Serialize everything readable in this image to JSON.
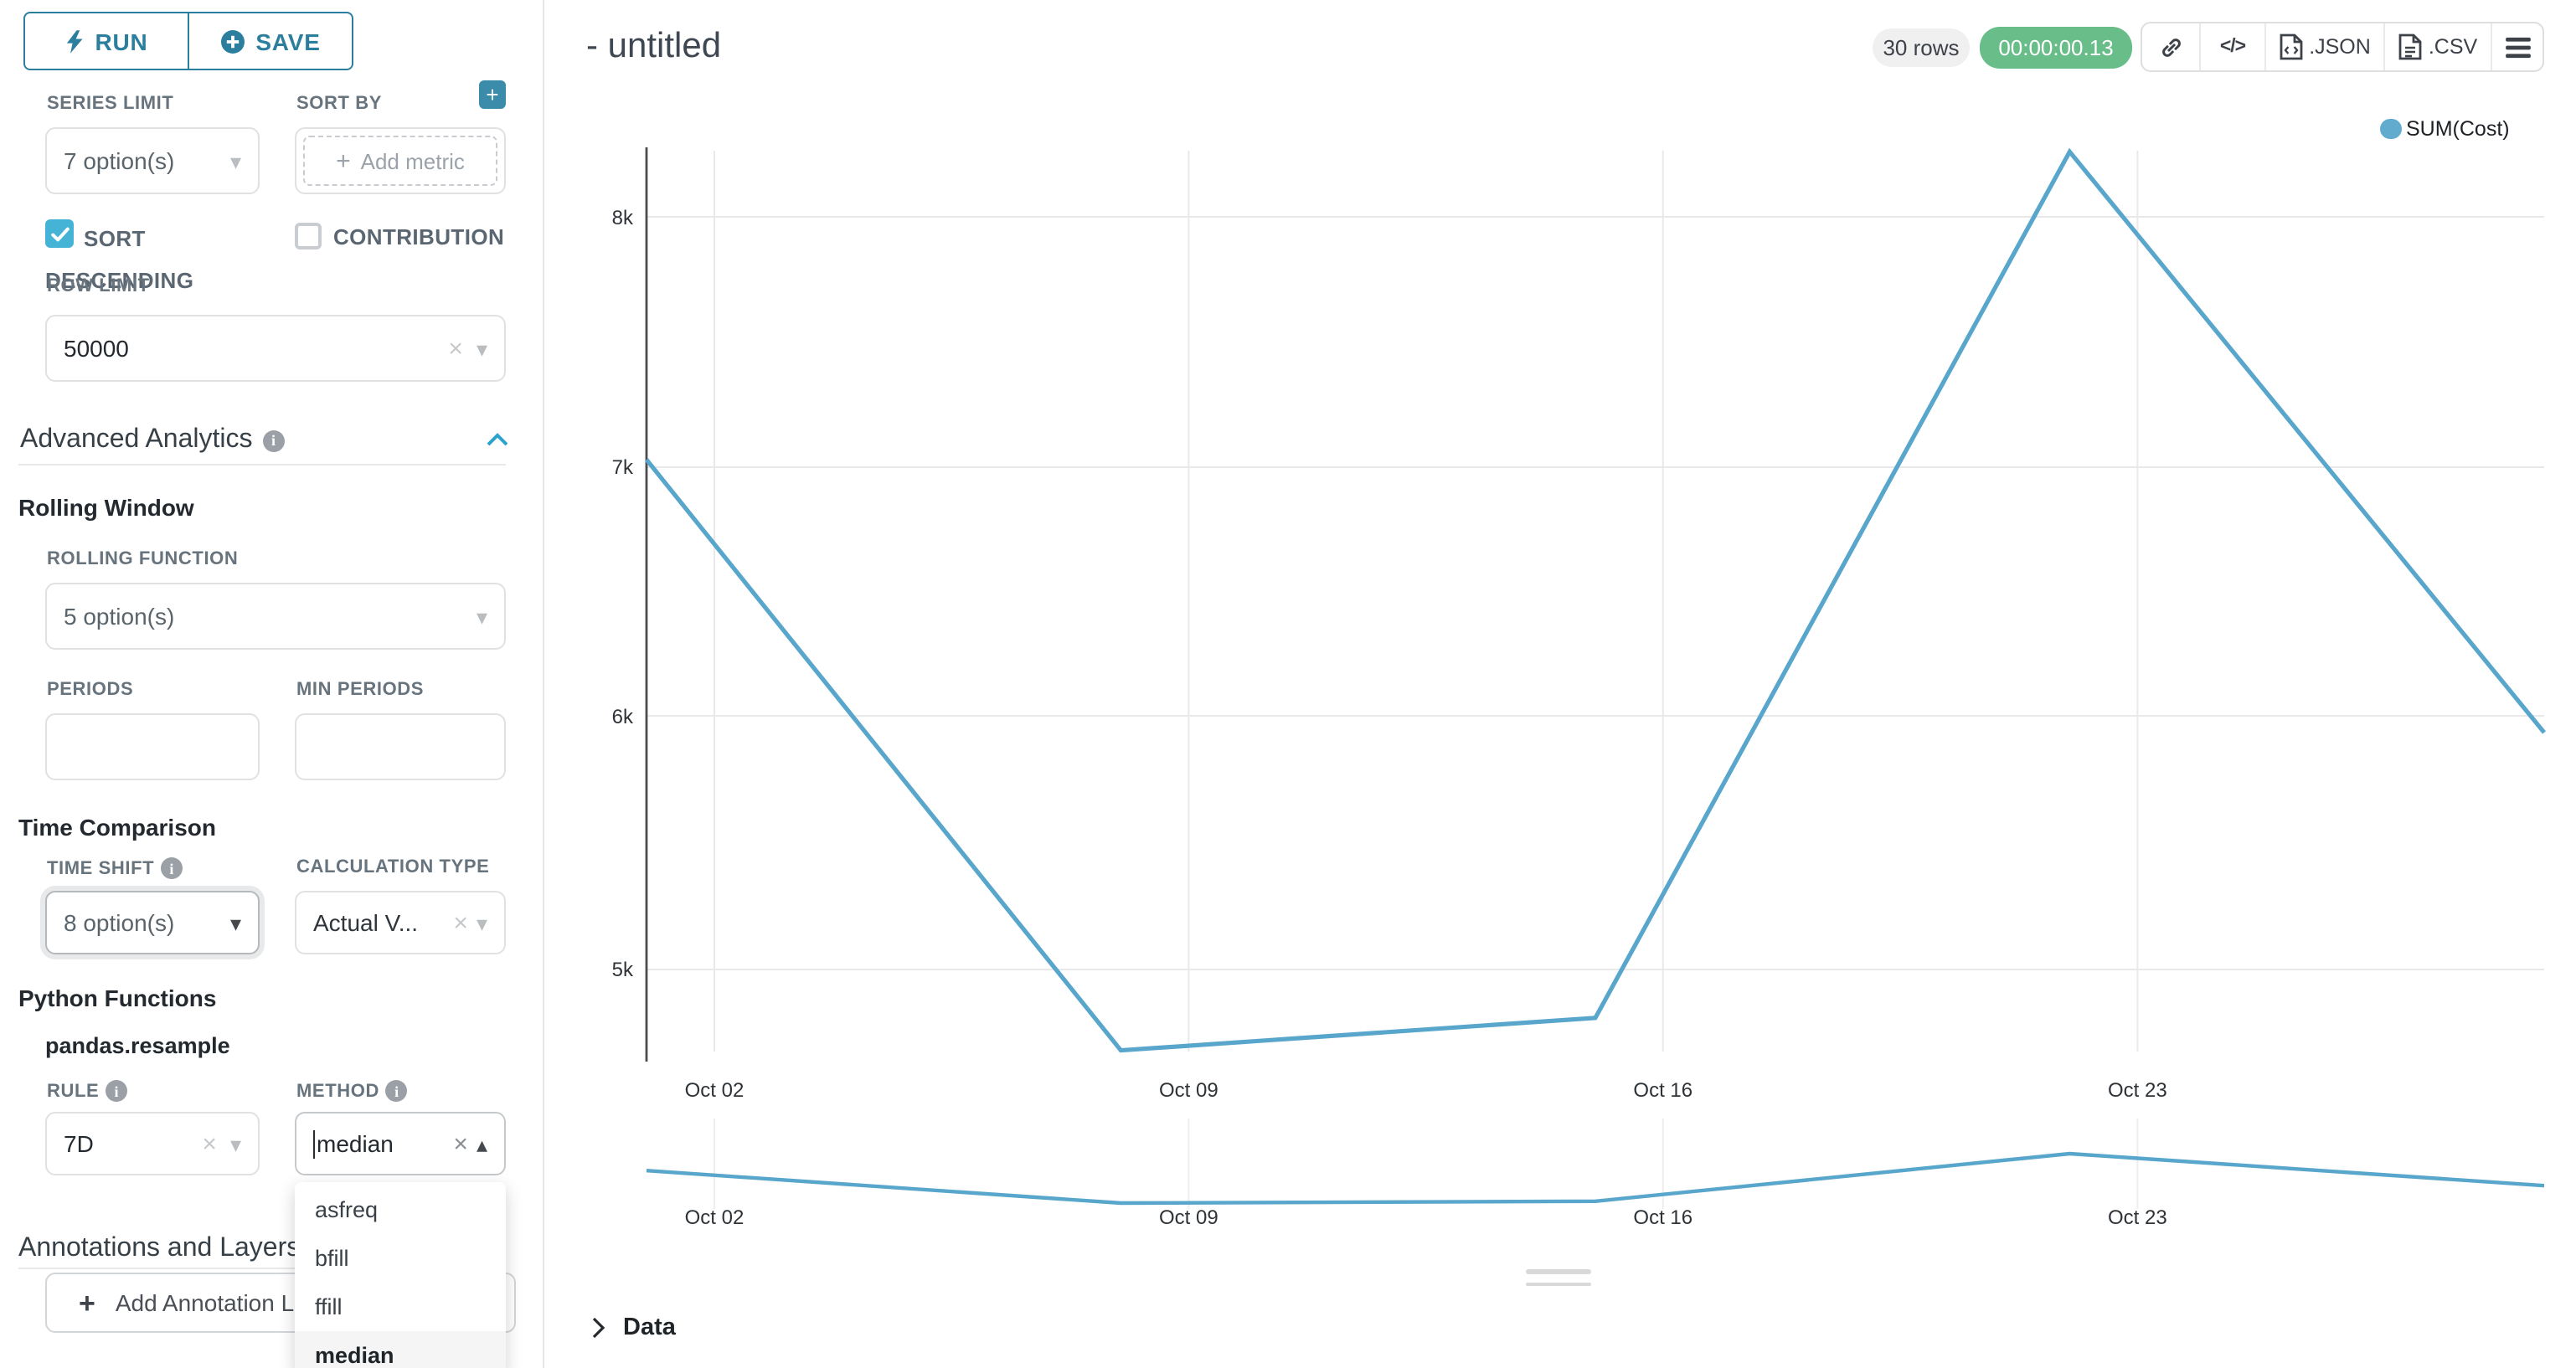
{
  "sidebar": {
    "run_button": {
      "label": "RUN"
    },
    "save_button": {
      "label": "SAVE"
    },
    "series_limit": {
      "label": "SERIES LIMIT",
      "value": "7 option(s)"
    },
    "sort_by": {
      "label": "SORT BY",
      "placeholder": "Add metric"
    },
    "sort_descending": {
      "label": "SORT DESCENDING",
      "checked": true
    },
    "contribution": {
      "label": "CONTRIBUTION",
      "checked": false
    },
    "row_limit": {
      "label": "ROW LIMIT",
      "value": "50000"
    },
    "advanced_analytics": {
      "title": "Advanced Analytics"
    },
    "rolling_window": {
      "title": "Rolling Window",
      "rolling_function": {
        "label": "ROLLING FUNCTION",
        "value": "5 option(s)"
      },
      "periods": {
        "label": "PERIODS",
        "value": ""
      },
      "min_periods": {
        "label": "MIN PERIODS",
        "value": ""
      }
    },
    "time_comparison": {
      "title": "Time Comparison",
      "time_shift": {
        "label": "TIME SHIFT",
        "value": "8 option(s)"
      },
      "calculation_type": {
        "label": "CALCULATION TYPE",
        "value": "Actual V..."
      }
    },
    "python_functions": {
      "title": "Python Functions",
      "subtitle": "pandas.resample",
      "rule": {
        "label": "RULE",
        "value": "7D"
      },
      "method": {
        "label": "METHOD",
        "value": "median",
        "options": [
          "asfreq",
          "bfill",
          "ffill",
          "median"
        ],
        "selected_option": "median"
      }
    },
    "annotations": {
      "title": "Annotations and Layers",
      "add_button_label": "Add Annotation Layer"
    }
  },
  "header": {
    "title": "- untitled",
    "rows_badge": "30 rows",
    "timer_badge": "00:00:00.13",
    "export_json_label": ".JSON",
    "export_csv_label": ".CSV"
  },
  "expander": {
    "data_label": "Data"
  },
  "colors": {
    "primary_teal": "#2b7e9d",
    "checkbox_teal": "#45b3d6",
    "collapse_chevron_blue": "#2ba3cb",
    "line_blue": "#58a6cb",
    "timer_green": "#68bd88",
    "rows_badge_gray": "#f0f0f0"
  },
  "chart_data": {
    "type": "line",
    "legend": [
      "SUM(Cost)"
    ],
    "series": [
      {
        "name": "SUM(Cost)",
        "x_dates": [
          "Oct 01",
          "Oct 08",
          "Oct 15",
          "Oct 22",
          "Oct 29"
        ],
        "x_days": [
          0,
          7,
          14,
          21,
          28
        ],
        "values": [
          7030,
          4670,
          4800,
          8260,
          5940
        ]
      }
    ],
    "x_tick_labels": [
      "Oct 02",
      "Oct 09",
      "Oct 16",
      "Oct 23"
    ],
    "y_tick_labels": [
      "5k",
      "6k",
      "7k",
      "8k"
    ],
    "y_axis_approx_range": [
      4600,
      8300
    ],
    "grid": true,
    "legend_position": "top-right",
    "has_mini_preview": true,
    "mini_x_tick_labels": [
      "Oct 02",
      "Oct 09",
      "Oct 16",
      "Oct 23"
    ]
  }
}
